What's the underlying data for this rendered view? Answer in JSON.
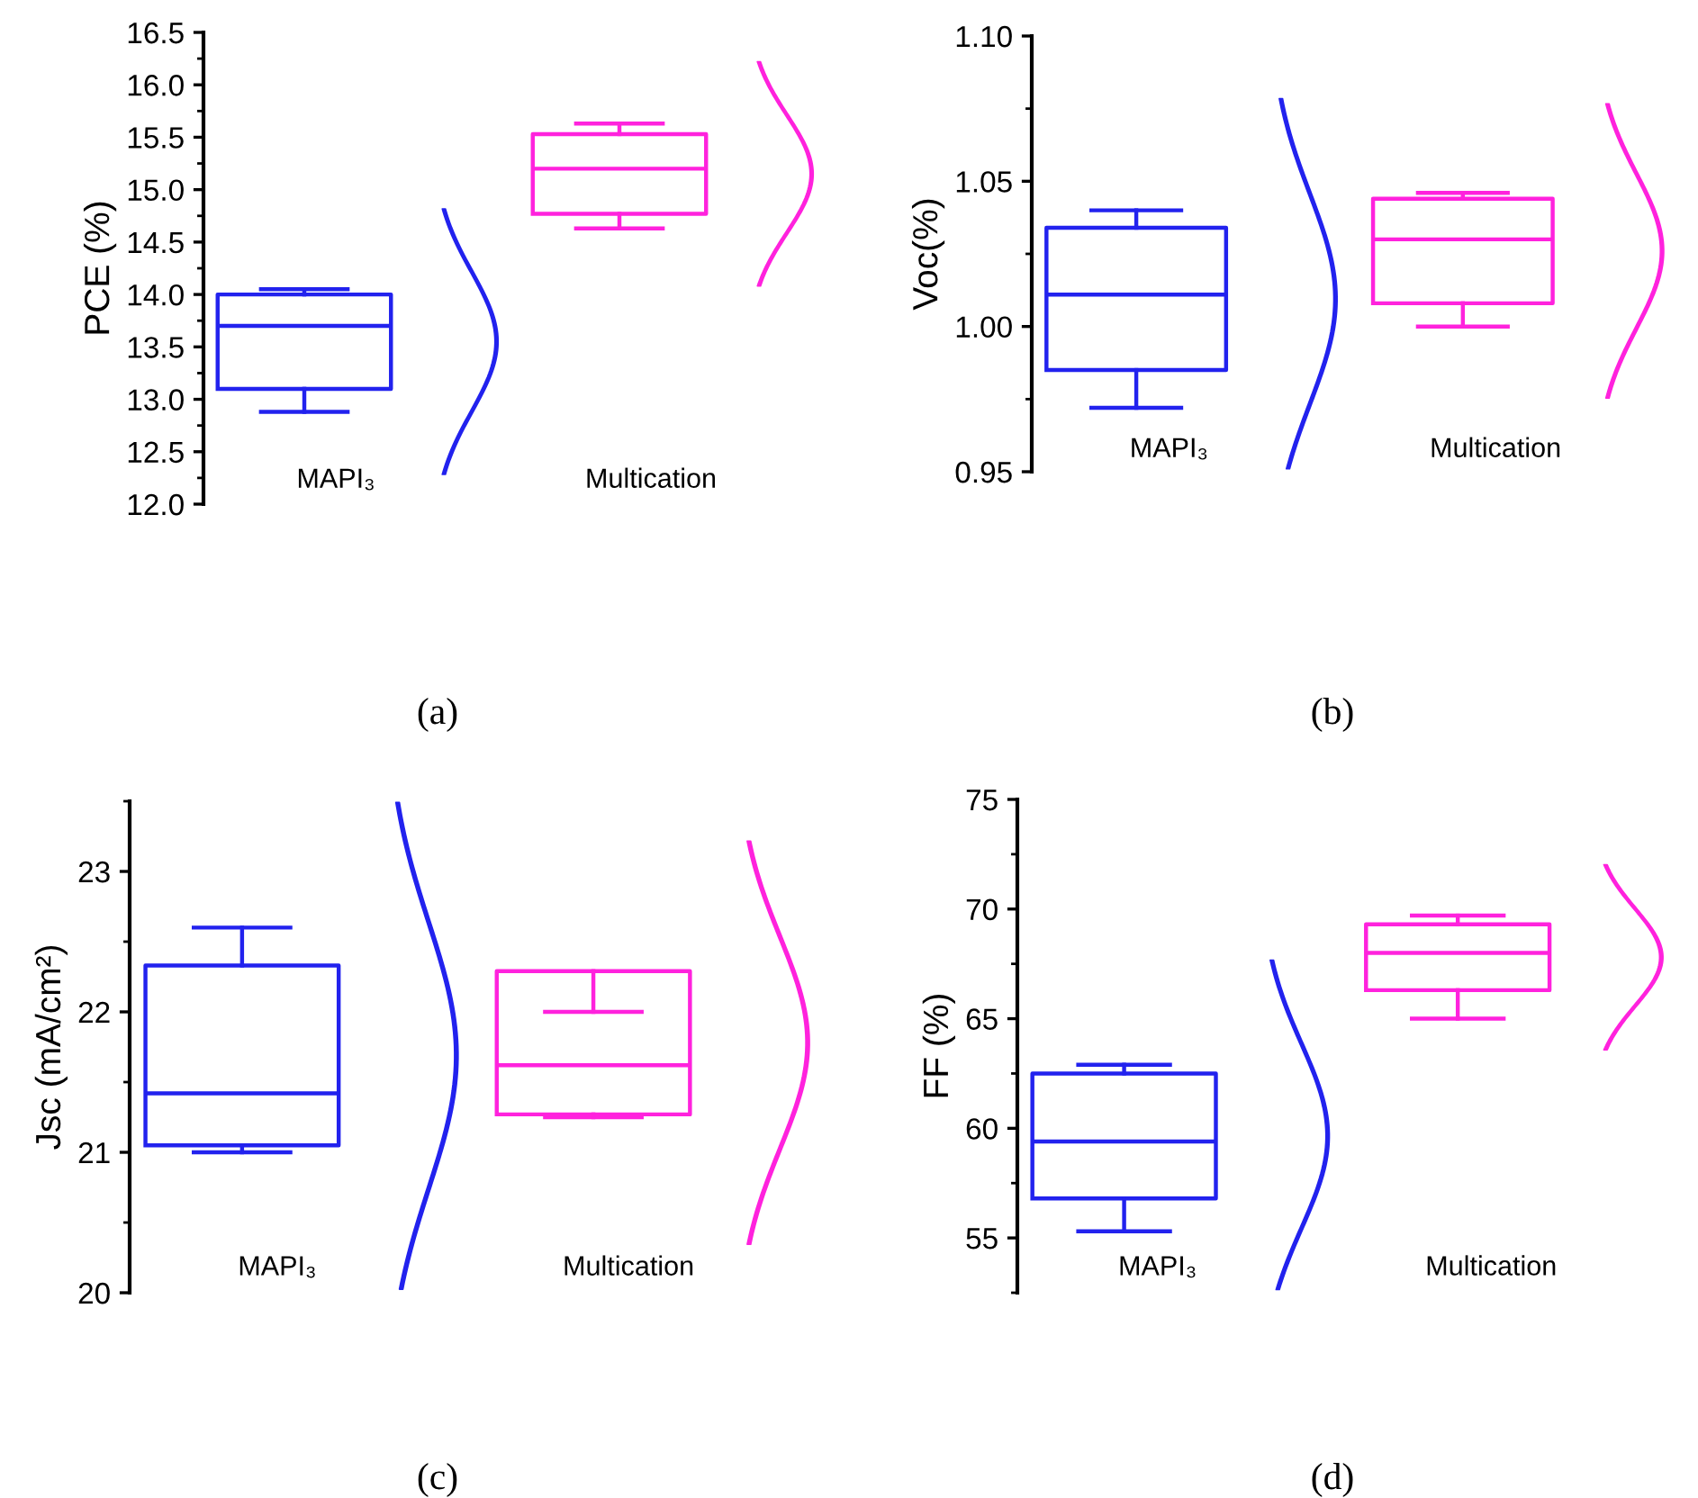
{
  "chart_data": [
    {
      "type": "box",
      "title": "(a)",
      "ylabel": "PCE (%)",
      "categories": [
        "MAPI₃",
        "Multication"
      ],
      "colors": [
        "#2222ee",
        "#ff22dd"
      ],
      "ylim": [
        12,
        16.5
      ],
      "yticks": [
        {
          "value": 12,
          "label": "12.0"
        },
        {
          "value": 12.5,
          "label": "12.5"
        },
        {
          "value": 13,
          "label": "13.0"
        },
        {
          "value": 13.5,
          "label": "13.5"
        },
        {
          "value": 14,
          "label": "14.0"
        },
        {
          "value": 14.5,
          "label": "14.5"
        },
        {
          "value": 15,
          "label": "15.0"
        },
        {
          "value": 15.5,
          "label": "15.5"
        },
        {
          "value": 16,
          "label": "16.0"
        },
        {
          "value": 16.5,
          "label": "16.5"
        }
      ],
      "boxes": [
        {
          "low": 12.88,
          "q1": 13.1,
          "median": 13.7,
          "q3": 14.0,
          "high": 14.05
        },
        {
          "low": 14.63,
          "q1": 14.77,
          "median": 15.2,
          "q3": 15.53,
          "high": 15.63
        }
      ]
    },
    {
      "type": "box",
      "title": "(b)",
      "ylabel": "Voc(%)",
      "categories": [
        "MAPI₃",
        "Multication"
      ],
      "colors": [
        "#2222ee",
        "#ff22dd"
      ],
      "ylim": [
        0.95,
        1.1
      ],
      "yticks": [
        {
          "value": 0.95,
          "label": "0.95"
        },
        {
          "value": 1.0,
          "label": "1.00"
        },
        {
          "value": 1.05,
          "label": "1.05"
        },
        {
          "value": 1.1,
          "label": "1.10"
        }
      ],
      "boxes": [
        {
          "low": 0.972,
          "q1": 0.985,
          "median": 1.011,
          "q3": 1.034,
          "high": 1.04
        },
        {
          "low": 1.0,
          "q1": 1.008,
          "median": 1.03,
          "q3": 1.044,
          "high": 1.046
        }
      ]
    },
    {
      "type": "box",
      "title": "(c)",
      "ylabel": "Jsc (mA/cm²)",
      "categories": [
        "MAPI₃",
        "Multication"
      ],
      "colors": [
        "#2222ee",
        "#ff22dd"
      ],
      "ylim": [
        20,
        23.5
      ],
      "yticks": [
        20,
        21,
        22,
        23
      ],
      "boxes": [
        {
          "low": 21.0,
          "q1": 21.05,
          "median": 21.42,
          "q3": 22.33,
          "high": 22.6
        },
        {
          "low": 21.25,
          "q1": 21.27,
          "median": 21.62,
          "q3": 22.29,
          "high": 22.0
        }
      ]
    },
    {
      "type": "box",
      "title": "(d)",
      "ylabel": "FF (%)",
      "categories": [
        "MAPI₃",
        "Multication"
      ],
      "colors": [
        "#2222ee",
        "#ff22dd"
      ],
      "ylim": [
        52.5,
        75
      ],
      "yticks": [
        55,
        60,
        65,
        70,
        75
      ],
      "boxes": [
        {
          "low": 55.3,
          "q1": 56.8,
          "median": 59.4,
          "q3": 62.5,
          "high": 62.9
        },
        {
          "low": 65.0,
          "q1": 66.3,
          "median": 68.0,
          "q3": 69.3,
          "high": 69.7
        }
      ]
    }
  ]
}
